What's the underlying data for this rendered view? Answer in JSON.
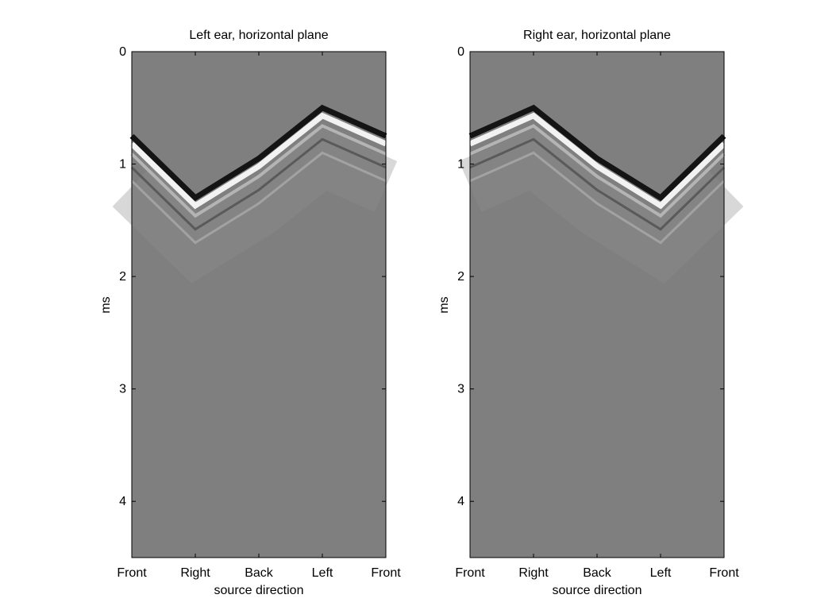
{
  "colors": {
    "background": "#ffffff",
    "baseline_gray": "#7f7f7f",
    "axis": "#000000"
  },
  "chart_data": [
    {
      "type": "heatmap",
      "colormap": "gray",
      "title": "Left ear, horizontal plane",
      "xlabel": "source direction",
      "ylabel": "ms",
      "x_tick_labels": [
        "Front",
        "Right",
        "Back",
        "Left",
        "Front"
      ],
      "y_tick_labels": [
        "0",
        "1",
        "2",
        "3",
        "4"
      ],
      "y_ticks": [
        0,
        1,
        2,
        3,
        4
      ],
      "ylim": [
        0,
        4.5
      ],
      "y_reversed": true,
      "grid": false,
      "wavefront_arrival_ms": [
        {
          "direction": "Front",
          "ms": 0.75
        },
        {
          "direction": "Right",
          "ms": 1.3
        },
        {
          "direction": "Back",
          "ms": 0.95
        },
        {
          "direction": "Left",
          "ms": 0.5
        },
        {
          "direction": "Front",
          "ms": 0.75
        }
      ]
    },
    {
      "type": "heatmap",
      "colormap": "gray",
      "title": "Right ear, horizontal plane",
      "xlabel": "source direction",
      "ylabel": "ms",
      "x_tick_labels": [
        "Front",
        "Right",
        "Back",
        "Left",
        "Front"
      ],
      "y_tick_labels": [
        "0",
        "1",
        "2",
        "3",
        "4"
      ],
      "y_ticks": [
        0,
        1,
        2,
        3,
        4
      ],
      "ylim": [
        0,
        4.5
      ],
      "y_reversed": true,
      "grid": false,
      "wavefront_arrival_ms": [
        {
          "direction": "Front",
          "ms": 0.75
        },
        {
          "direction": "Right",
          "ms": 0.5
        },
        {
          "direction": "Back",
          "ms": 0.95
        },
        {
          "direction": "Left",
          "ms": 1.3
        },
        {
          "direction": "Front",
          "ms": 0.75
        }
      ]
    }
  ]
}
